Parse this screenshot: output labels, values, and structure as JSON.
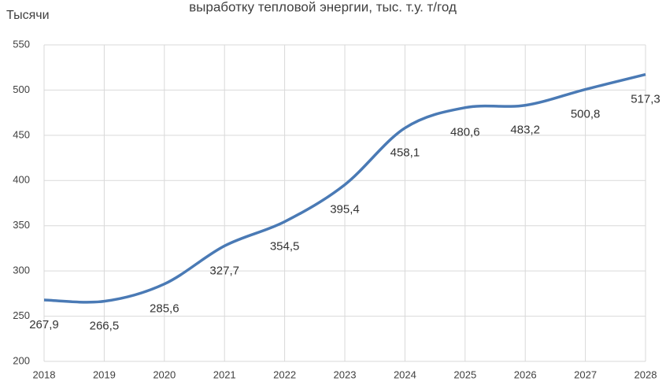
{
  "chart_data": {
    "type": "line",
    "title": "выработку тепловой энергии, тыс. т.у. т/год",
    "y_label": "Тысячи",
    "x": [
      2018,
      2019,
      2020,
      2021,
      2022,
      2023,
      2024,
      2025,
      2026,
      2027,
      2028
    ],
    "series": [
      {
        "name": "выработка",
        "color": "#4a7ab5",
        "values": [
          267.9,
          266.5,
          285.6,
          327.7,
          354.5,
          395.4,
          458.1,
          480.6,
          483.2,
          500.8,
          517.3
        ],
        "value_labels": [
          "267,9",
          "266,5",
          "285,6",
          "327,7",
          "354,5",
          "395,4",
          "458,1",
          "480,6",
          "483,2",
          "500,8",
          "517,3"
        ]
      }
    ],
    "xlim": [
      2018,
      2028
    ],
    "xticks": [
      2018,
      2019,
      2020,
      2021,
      2022,
      2023,
      2024,
      2025,
      2026,
      2027,
      2028
    ],
    "ylim": [
      200,
      550
    ],
    "yticks": [
      200,
      250,
      300,
      350,
      400,
      450,
      500,
      550
    ],
    "grid": true,
    "smooth": true
  }
}
